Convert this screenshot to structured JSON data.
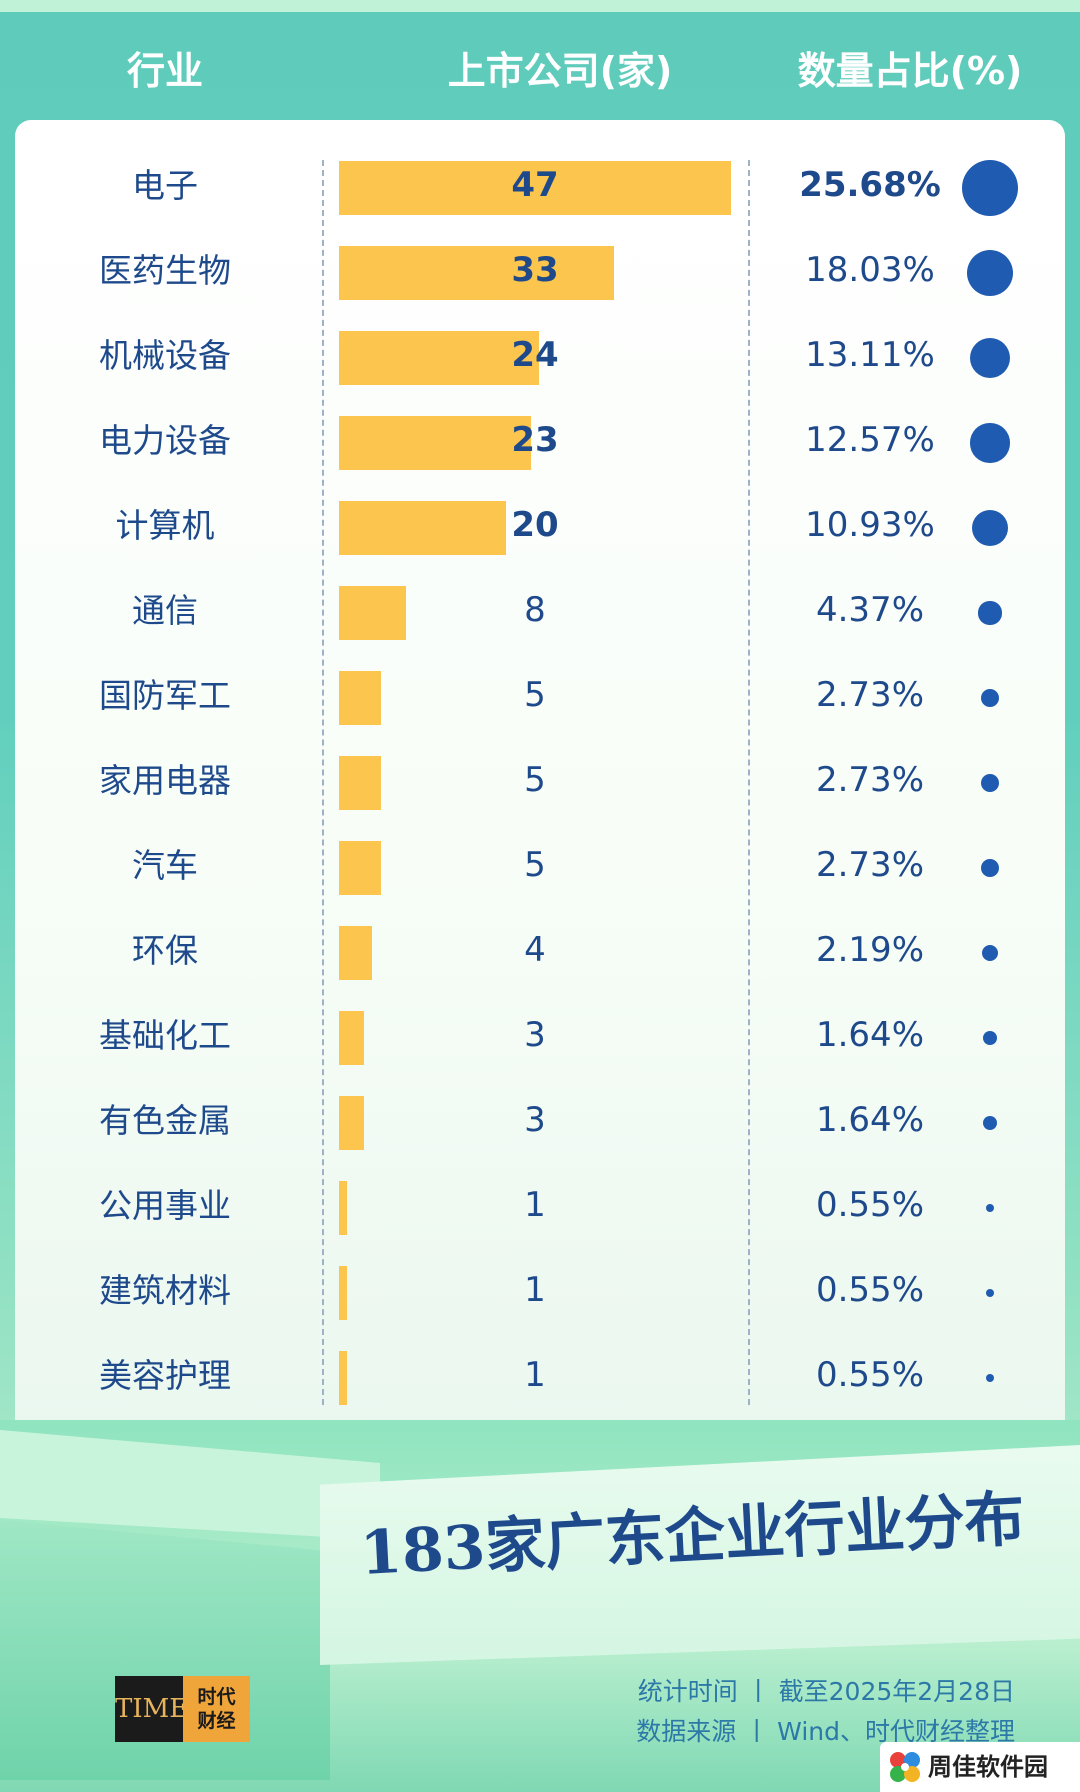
{
  "header": {
    "industry": "行业",
    "count": "上市公司(家)",
    "share": "数量占比(%)"
  },
  "chart_data": {
    "type": "bar",
    "orientation": "horizontal",
    "categories": [
      "电子",
      "医药生物",
      "机械设备",
      "电力设备",
      "计算机",
      "通信",
      "国防军工",
      "家用电器",
      "汽车",
      "环保",
      "基础化工",
      "有色金属",
      "公用事业",
      "建筑材料",
      "美容护理"
    ],
    "values": [
      47,
      33,
      24,
      23,
      20,
      8,
      5,
      5,
      5,
      4,
      3,
      3,
      1,
      1,
      1
    ],
    "percent_labels": [
      "25.68%",
      "18.03%",
      "13.11%",
      "12.57%",
      "10.93%",
      "4.37%",
      "2.73%",
      "2.73%",
      "2.73%",
      "2.19%",
      "1.64%",
      "1.64%",
      "0.55%",
      "0.55%",
      "0.55%"
    ],
    "percent_values": [
      25.68,
      18.03,
      13.11,
      12.57,
      10.93,
      4.37,
      2.73,
      2.73,
      2.73,
      2.19,
      1.64,
      1.64,
      0.55,
      0.55,
      0.55
    ],
    "title": "183家广东企业行业分布",
    "bar_color": "#fcc54e",
    "dot_color": "#1f5bb0"
  },
  "footer": {
    "stat_time": "统计时间 丨 截至2025年2月28日",
    "source": "数据来源 丨 Wind、时代财经整理",
    "logo_left": "TIME",
    "logo_right_line1": "时代",
    "logo_right_line2": "财经",
    "watermark": "周佳软件园"
  }
}
